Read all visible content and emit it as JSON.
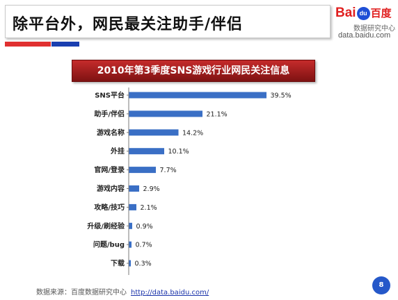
{
  "slide": {
    "title": "除平台外，网民最关注助手/伴侣",
    "page_number": "8"
  },
  "logo": {
    "brand_latin": "Bai",
    "brand_paw": "du",
    "brand_cn": "百度",
    "subtitle": "数据研究中心",
    "url": "data.baidu.com"
  },
  "source": {
    "label": "数据来源：百度数据研究中心",
    "link": "http://data.baidu.com/"
  },
  "colors": {
    "bar": "#3a6fc5",
    "header": "#a31f1f",
    "accent_red": "#e03030",
    "accent_blue": "#1a3fb0"
  },
  "chart_data": {
    "type": "bar",
    "orientation": "horizontal",
    "title": "2010年第3季度SNS游戏行业网民关注信息",
    "categories": [
      "SNS平台",
      "助手/伴侣",
      "游戏名称",
      "外挂",
      "官网/登录",
      "游戏内容",
      "攻略/技巧",
      "升级/刷经验",
      "问题/bug",
      "下载"
    ],
    "values": [
      39.5,
      21.1,
      14.2,
      10.1,
      7.7,
      2.9,
      2.1,
      0.9,
      0.7,
      0.3
    ],
    "value_labels": [
      "39.5%",
      "21.1%",
      "14.2%",
      "10.1%",
      "7.7%",
      "2.9%",
      "2.1%",
      "0.9%",
      "0.7%",
      "0.3%"
    ],
    "unit": "%",
    "xlim": [
      0,
      40
    ],
    "grid": false,
    "legend": "none"
  }
}
